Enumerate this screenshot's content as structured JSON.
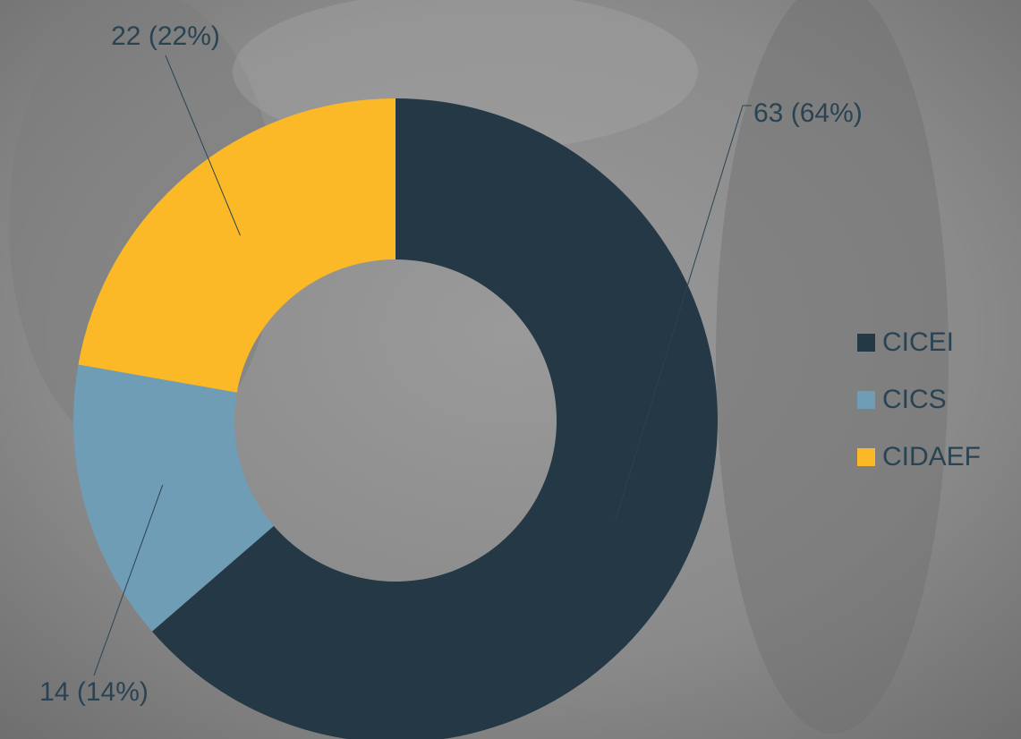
{
  "chart_data": {
    "type": "donut",
    "categories": [
      "CICEI",
      "CICS",
      "CIDAEF"
    ],
    "values": [
      63,
      14,
      22
    ],
    "value_labels": [
      "63 (64%)",
      "14 (14%)",
      "22 (22%)"
    ],
    "colors": [
      "#243846",
      "#6f9db5",
      "#fbb827"
    ],
    "legend": "right"
  }
}
